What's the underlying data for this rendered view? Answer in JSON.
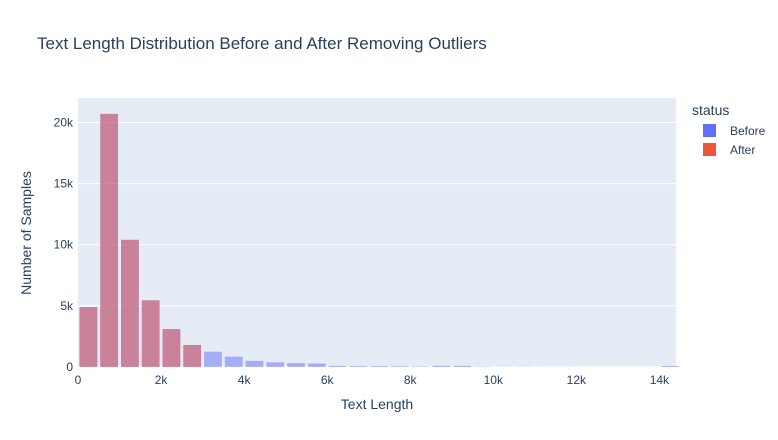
{
  "chart_data": {
    "type": "bar",
    "title": "Text Length Distribution Before and After Removing Outliers",
    "xlabel": "Text Length",
    "ylabel": "Number of Samples",
    "xlim": [
      0,
      14400
    ],
    "ylim": [
      0,
      22000
    ],
    "bin_width": 500,
    "xticks": [
      0,
      2000,
      4000,
      6000,
      8000,
      10000,
      12000,
      14000
    ],
    "xtick_labels": [
      "0",
      "2k",
      "4k",
      "6k",
      "8k",
      "10k",
      "12k",
      "14k"
    ],
    "yticks": [
      0,
      5000,
      10000,
      15000,
      20000
    ],
    "ytick_labels": [
      "0",
      "5k",
      "10k",
      "15k",
      "20k"
    ],
    "grid": true,
    "legend": {
      "title": "status",
      "placement": "right"
    },
    "series": [
      {
        "name": "Before",
        "color": "#636efa",
        "x": [
          250,
          750,
          1250,
          1750,
          2250,
          2750,
          3250,
          3750,
          4250,
          4750,
          5250,
          5750,
          6250,
          6750,
          7250,
          7750,
          8250,
          8750,
          9250,
          9750,
          10250,
          10750,
          11250,
          11750,
          12250,
          12750,
          13250,
          13750,
          14250
        ],
        "values": [
          4900,
          20700,
          10400,
          5450,
          3100,
          1800,
          1250,
          850,
          500,
          380,
          320,
          280,
          90,
          70,
          70,
          60,
          40,
          100,
          90,
          30,
          20,
          20,
          15,
          15,
          10,
          10,
          10,
          10,
          80
        ]
      },
      {
        "name": "After",
        "color": "#ef553b",
        "x": [
          250,
          750,
          1250,
          1750,
          2250,
          2750
        ],
        "values": [
          4900,
          20700,
          10400,
          5450,
          3100,
          1800
        ]
      }
    ]
  }
}
